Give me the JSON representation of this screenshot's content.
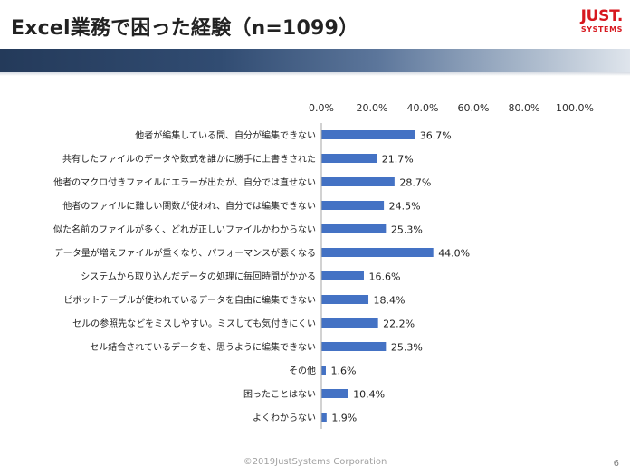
{
  "slide": {
    "title": "Excel業務で困った経験（n=1099）",
    "brand": {
      "main": "JUST.",
      "sub": "SYSTEMS"
    },
    "footer": "©2019JustSystems Corporation",
    "page_number": "6",
    "colors": {
      "title": "#222222",
      "bar": "#4472c4",
      "brand": "#d7181f",
      "header_band": "#314c72"
    }
  },
  "chart_data": {
    "type": "bar",
    "orientation": "horizontal",
    "categories": [
      "他者が編集している間、自分が編集できない",
      "共有したファイルのデータや数式を誰かに勝手に上書きされた",
      "他者のマクロ付きファイルにエラーが出たが、自分では直せない",
      "他者のファイルに難しい関数が使われ、自分では編集できない",
      "似た名前のファイルが多く、どれが正しいファイルかわからない",
      "データ量が増えファイルが重くなり、パフォーマンスが悪くなる",
      "システムから取り込んだデータの処理に毎回時間がかかる",
      "ピボットテーブルが使われているデータを自由に編集できない",
      "セルの参照先などをミスしやすい。ミスしても気付きにくい",
      "セル結合されているデータを、思うように編集できない",
      "その他",
      "困ったことはない",
      "よくわからない"
    ],
    "values": [
      36.7,
      21.7,
      28.7,
      24.5,
      25.3,
      44.0,
      16.6,
      18.4,
      22.2,
      25.3,
      1.6,
      10.4,
      1.9
    ],
    "value_labels": [
      "36.7%",
      "21.7%",
      "28.7%",
      "24.5%",
      "25.3%",
      "44.0%",
      "16.6%",
      "18.4%",
      "22.2%",
      "25.3%",
      "1.6%",
      "10.4%",
      "1.9%"
    ],
    "xlim": [
      0,
      100
    ],
    "xticks": [
      0,
      20,
      40,
      60,
      80,
      100
    ],
    "xtick_labels": [
      "0.0%",
      "20.0%",
      "40.0%",
      "60.0%",
      "80.0%",
      "100.0%"
    ],
    "x_axis_position": "top",
    "grid": false,
    "legend": "none",
    "bar_color": "#4472c4"
  }
}
